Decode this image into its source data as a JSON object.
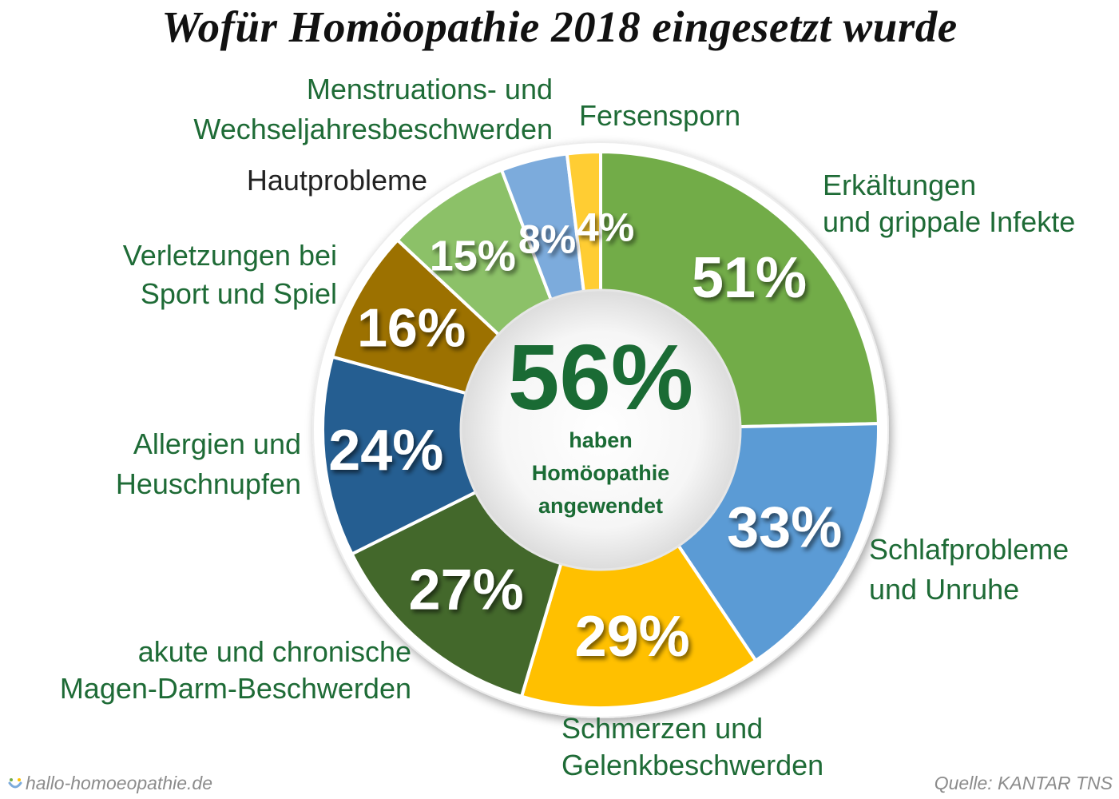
{
  "title": "Wofür Homöopathie 2018 eingesetzt wurde",
  "colors": {
    "title": "#111111",
    "label_green": "#1e6b36",
    "label_dark": "#222222",
    "center_green": "#1a6b34",
    "pct_text": "#ffffff",
    "center_circle": "#f2f2f2",
    "footer": "#8c8c8c"
  },
  "center": {
    "value": "56%",
    "line1": "haben",
    "line2": "Homöopathie",
    "line3": "angewendet"
  },
  "chart_data": {
    "type": "pie",
    "subtype": "donut",
    "title": "Wofür Homöopathie 2018 eingesetzt wurde",
    "unit": "%",
    "categories": [
      {
        "label_lines": [
          "Erkältungen",
          "und grippale Infekte"
        ],
        "value": 51,
        "value_label": "51%",
        "color": "#72ac48"
      },
      {
        "label_lines": [
          "Schlafprobleme",
          "und Unruhe"
        ],
        "value": 33,
        "value_label": "33%",
        "color": "#5b9bd5"
      },
      {
        "label_lines": [
          "Schmerzen und",
          "Gelenkbeschwerden"
        ],
        "value": 29,
        "value_label": "29%",
        "color": "#ffc000"
      },
      {
        "label_lines": [
          "akute und chronische",
          "Magen-Darm-Beschwerden"
        ],
        "value": 27,
        "value_label": "27%",
        "color": "#43682b"
      },
      {
        "label_lines": [
          "Allergien und",
          "Heuschnupfen"
        ],
        "value": 24,
        "value_label": "24%",
        "color": "#255e91"
      },
      {
        "label_lines": [
          "Verletzungen bei",
          "Sport und Spiel"
        ],
        "value": 16,
        "value_label": "16%",
        "color": "#9c7100"
      },
      {
        "label_lines": [
          "Hautprobleme"
        ],
        "value": 15,
        "value_label": "15%",
        "color": "#8cc168"
      },
      {
        "label_lines": [
          "Menstruations- und",
          "Wechseljahresbeschwerden"
        ],
        "value": 8,
        "value_label": "8%",
        "color": "#7cabdc"
      },
      {
        "label_lines": [
          "Fersensporn"
        ],
        "value": 4,
        "value_label": "4%",
        "color": "#ffcd33"
      }
    ]
  },
  "footer": {
    "website": "hallo-homoeopathie.de",
    "source": "Quelle: KANTAR TNS"
  }
}
